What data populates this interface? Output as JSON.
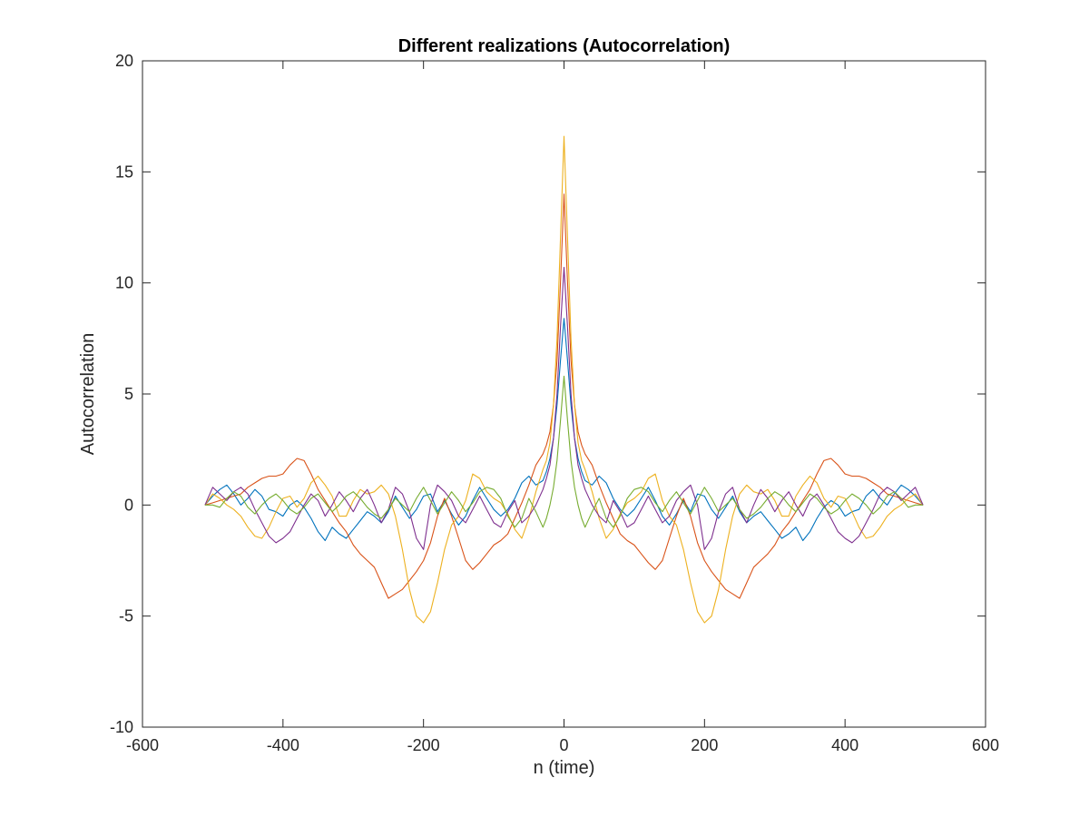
{
  "chart_data": {
    "type": "line",
    "title": "Different realizations (Autocorrelation)",
    "xlabel": "n (time)",
    "ylabel": "Autocorrelation",
    "xlim": [
      -600,
      600
    ],
    "ylim": [
      -10,
      20
    ],
    "xticks": [
      -600,
      -400,
      -200,
      0,
      200,
      400,
      600
    ],
    "yticks": [
      -10,
      -5,
      0,
      5,
      10,
      15,
      20
    ],
    "xtick_labels": [
      "-600",
      "-400",
      "-200",
      "0",
      "200",
      "400",
      "600"
    ],
    "ytick_labels": [
      "-10",
      "-5",
      "0",
      "5",
      "10",
      "15",
      "20"
    ],
    "grid": false,
    "legend": "none",
    "symmetric_about_zero": true,
    "series": [
      {
        "color": "#0072BD",
        "x": [
          0,
          5,
          10,
          15,
          20,
          25,
          30,
          40,
          50,
          60,
          70,
          80,
          90,
          100,
          110,
          120,
          130,
          140,
          150,
          160,
          170,
          180,
          190,
          200,
          210,
          220,
          230,
          240,
          250,
          260,
          270,
          280,
          290,
          300,
          310,
          320,
          330,
          340,
          350,
          360,
          370,
          380,
          390,
          400,
          410,
          420,
          430,
          440,
          450,
          460,
          470,
          480,
          490,
          500,
          511
        ],
        "y": [
          8.4,
          6.5,
          4.5,
          3.0,
          2.1,
          1.5,
          1.1,
          0.9,
          1.3,
          1.0,
          0.3,
          -0.2,
          -0.5,
          -0.2,
          0.3,
          0.8,
          0.2,
          -0.5,
          -0.9,
          -0.4,
          0.2,
          -0.3,
          0.5,
          0.4,
          -0.2,
          -0.6,
          -0.1,
          0.4,
          -0.3,
          -0.8,
          -0.5,
          -0.3,
          -0.7,
          -1.1,
          -1.5,
          -1.3,
          -1.0,
          -1.6,
          -1.2,
          -0.6,
          -0.1,
          0.2,
          0.0,
          -0.5,
          -0.3,
          -0.2,
          0.4,
          0.7,
          0.3,
          0.0,
          0.5,
          0.9,
          0.7,
          0.4,
          0.0
        ]
      },
      {
        "color": "#D95319",
        "x": [
          0,
          5,
          10,
          15,
          20,
          25,
          30,
          40,
          50,
          60,
          70,
          80,
          90,
          100,
          110,
          120,
          130,
          140,
          150,
          160,
          170,
          180,
          190,
          200,
          210,
          220,
          230,
          240,
          250,
          260,
          270,
          280,
          290,
          300,
          310,
          320,
          330,
          340,
          350,
          360,
          370,
          380,
          390,
          400,
          410,
          420,
          430,
          440,
          450,
          460,
          470,
          480,
          490,
          500,
          511
        ],
        "y": [
          14.0,
          10.0,
          6.5,
          4.5,
          3.3,
          2.7,
          2.3,
          1.8,
          0.9,
          0.1,
          -0.6,
          -1.3,
          -1.6,
          -1.8,
          -2.2,
          -2.6,
          -2.9,
          -2.5,
          -1.5,
          -0.5,
          0.3,
          -0.5,
          -1.7,
          -2.5,
          -3.0,
          -3.4,
          -3.8,
          -4.0,
          -4.2,
          -3.5,
          -2.8,
          -2.5,
          -2.2,
          -1.8,
          -1.2,
          -0.8,
          -0.3,
          0.2,
          0.7,
          1.4,
          2.0,
          2.1,
          1.8,
          1.4,
          1.3,
          1.3,
          1.2,
          1.0,
          0.8,
          0.5,
          0.4,
          0.3,
          0.2,
          0.1,
          0.0
        ]
      },
      {
        "color": "#EDB120",
        "x": [
          0,
          5,
          10,
          15,
          20,
          25,
          30,
          40,
          50,
          60,
          70,
          80,
          90,
          100,
          110,
          120,
          130,
          140,
          150,
          160,
          170,
          180,
          190,
          200,
          210,
          220,
          230,
          240,
          250,
          260,
          270,
          280,
          290,
          300,
          310,
          320,
          330,
          340,
          350,
          360,
          370,
          380,
          390,
          400,
          410,
          420,
          430,
          440,
          450,
          460,
          470,
          480,
          490,
          500,
          511
        ],
        "y": [
          16.6,
          12.0,
          7.5,
          4.5,
          2.8,
          2.0,
          1.6,
          0.6,
          -0.6,
          -1.5,
          -1.1,
          -0.4,
          0.1,
          0.3,
          0.6,
          1.2,
          1.4,
          0.2,
          -0.5,
          -0.9,
          -2.0,
          -3.5,
          -4.8,
          -5.3,
          -5.0,
          -3.8,
          -2.0,
          -0.5,
          0.5,
          0.9,
          0.6,
          0.5,
          0.7,
          0.2,
          -0.5,
          -0.5,
          0.4,
          0.9,
          1.3,
          1.0,
          0.3,
          -0.1,
          0.4,
          0.3,
          -0.3,
          -1.0,
          -1.5,
          -1.4,
          -1.0,
          -0.5,
          -0.2,
          0.0,
          0.3,
          0.5,
          0.0
        ]
      },
      {
        "color": "#7E2F8E",
        "x": [
          0,
          5,
          10,
          15,
          20,
          25,
          30,
          40,
          50,
          60,
          70,
          80,
          90,
          100,
          110,
          120,
          130,
          140,
          150,
          160,
          170,
          180,
          190,
          200,
          210,
          220,
          230,
          240,
          250,
          260,
          270,
          280,
          290,
          300,
          310,
          320,
          330,
          340,
          350,
          360,
          370,
          380,
          390,
          400,
          410,
          420,
          430,
          440,
          450,
          460,
          470,
          480,
          490,
          500,
          511
        ],
        "y": [
          10.7,
          8.0,
          5.0,
          3.0,
          1.8,
          1.2,
          0.7,
          0.0,
          -0.5,
          -0.8,
          0.2,
          -0.3,
          -1.0,
          -0.8,
          -0.2,
          0.4,
          -0.2,
          -0.8,
          -0.5,
          0.2,
          0.6,
          0.9,
          0.0,
          -2.0,
          -1.5,
          -0.3,
          0.5,
          0.8,
          -0.2,
          -0.8,
          0.0,
          0.7,
          0.3,
          -0.3,
          0.2,
          0.6,
          0.0,
          -0.5,
          0.2,
          0.5,
          0.0,
          -0.6,
          -1.2,
          -1.5,
          -1.7,
          -1.4,
          -0.8,
          -0.2,
          0.5,
          0.8,
          0.6,
          0.2,
          0.5,
          0.8,
          0.0
        ]
      },
      {
        "color": "#77AC30",
        "x": [
          0,
          5,
          10,
          15,
          20,
          25,
          30,
          40,
          50,
          60,
          70,
          80,
          90,
          100,
          110,
          120,
          130,
          140,
          150,
          160,
          170,
          180,
          190,
          200,
          210,
          220,
          230,
          240,
          250,
          260,
          270,
          280,
          290,
          300,
          310,
          320,
          330,
          340,
          350,
          360,
          370,
          380,
          390,
          400,
          410,
          420,
          430,
          440,
          450,
          460,
          470,
          480,
          490,
          500,
          511
        ],
        "y": [
          5.8,
          3.8,
          2.0,
          0.8,
          0.0,
          -0.6,
          -1.0,
          -0.3,
          0.3,
          -0.6,
          -1.0,
          -0.5,
          0.3,
          0.7,
          0.8,
          0.6,
          0.1,
          -0.3,
          0.2,
          0.6,
          0.1,
          -0.4,
          0.2,
          0.8,
          0.3,
          -0.3,
          0.0,
          0.3,
          -0.2,
          -0.6,
          -0.4,
          -0.1,
          0.3,
          0.6,
          0.4,
          0.0,
          -0.3,
          0.1,
          0.5,
          0.3,
          -0.1,
          -0.4,
          -0.2,
          0.2,
          0.5,
          0.3,
          0.0,
          -0.4,
          -0.1,
          0.4,
          0.6,
          0.3,
          -0.1,
          0.0,
          0.0
        ]
      }
    ]
  }
}
